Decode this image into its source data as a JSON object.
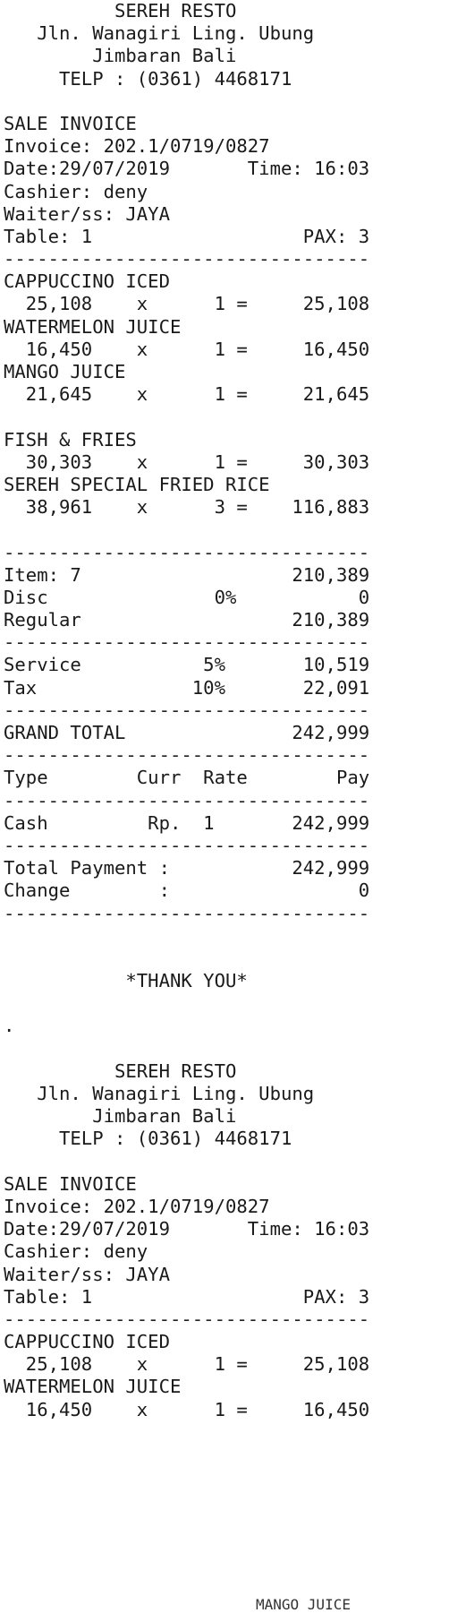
{
  "lines": [
    "          SEREH RESTO",
    "   Jln. Wanagiri Ling. Ubung",
    "        Jimbaran Bali",
    "     TELP : (0361) 4468171",
    "",
    "SALE INVOICE",
    "Invoice: 202.1/0719/0827",
    "Date:29/07/2019       Time: 16:03",
    "Cashier: deny",
    "Waiter/ss: JAYA",
    "Table: 1                   PAX: 3",
    "---------------------------------",
    "CAPPUCCINO ICED",
    "  25,108    x      1 =     25,108",
    "WATERMELON JUICE",
    "  16,450    x      1 =     16,450",
    "MANGO JUICE",
    "  21,645    x      1 =     21,645",
    "",
    "FISH & FRIES",
    "  30,303    x      1 =     30,303",
    "SEREH SPECIAL FRIED RICE",
    "  38,961    x      3 =    116,883",
    "",
    "---------------------------------",
    "Item: 7                   210,389",
    "Disc               0%           0",
    "Regular                   210,389",
    "---------------------------------",
    "Service           5%       10,519",
    "Tax              10%       22,091",
    "---------------------------------",
    "GRAND TOTAL               242,999",
    "---------------------------------",
    "Type        Curr  Rate        Pay",
    "---------------------------------",
    "Cash         Rp.  1       242,999",
    "---------------------------------",
    "Total Payment :           242,999",
    "Change        :                 0",
    "---------------------------------",
    "",
    "",
    "           *THANK YOU*",
    "",
    ".",
    "",
    "          SEREH RESTO",
    "   Jln. Wanagiri Ling. Ubung",
    "        Jimbaran Bali",
    "     TELP : (0361) 4468171",
    "",
    "SALE INVOICE",
    "Invoice: 202.1/0719/0827",
    "Date:29/07/2019       Time: 16:03",
    "Cashier: deny",
    "Waiter/ss: JAYA",
    "Table: 1                   PAX: 3",
    "---------------------------------",
    "CAPPUCCINO ICED",
    "  25,108    x      1 =     25,108",
    "WATERMELON JUICE",
    "  16,450    x      1 =     16,450"
  ],
  "tail": "MANGO JUICE"
}
